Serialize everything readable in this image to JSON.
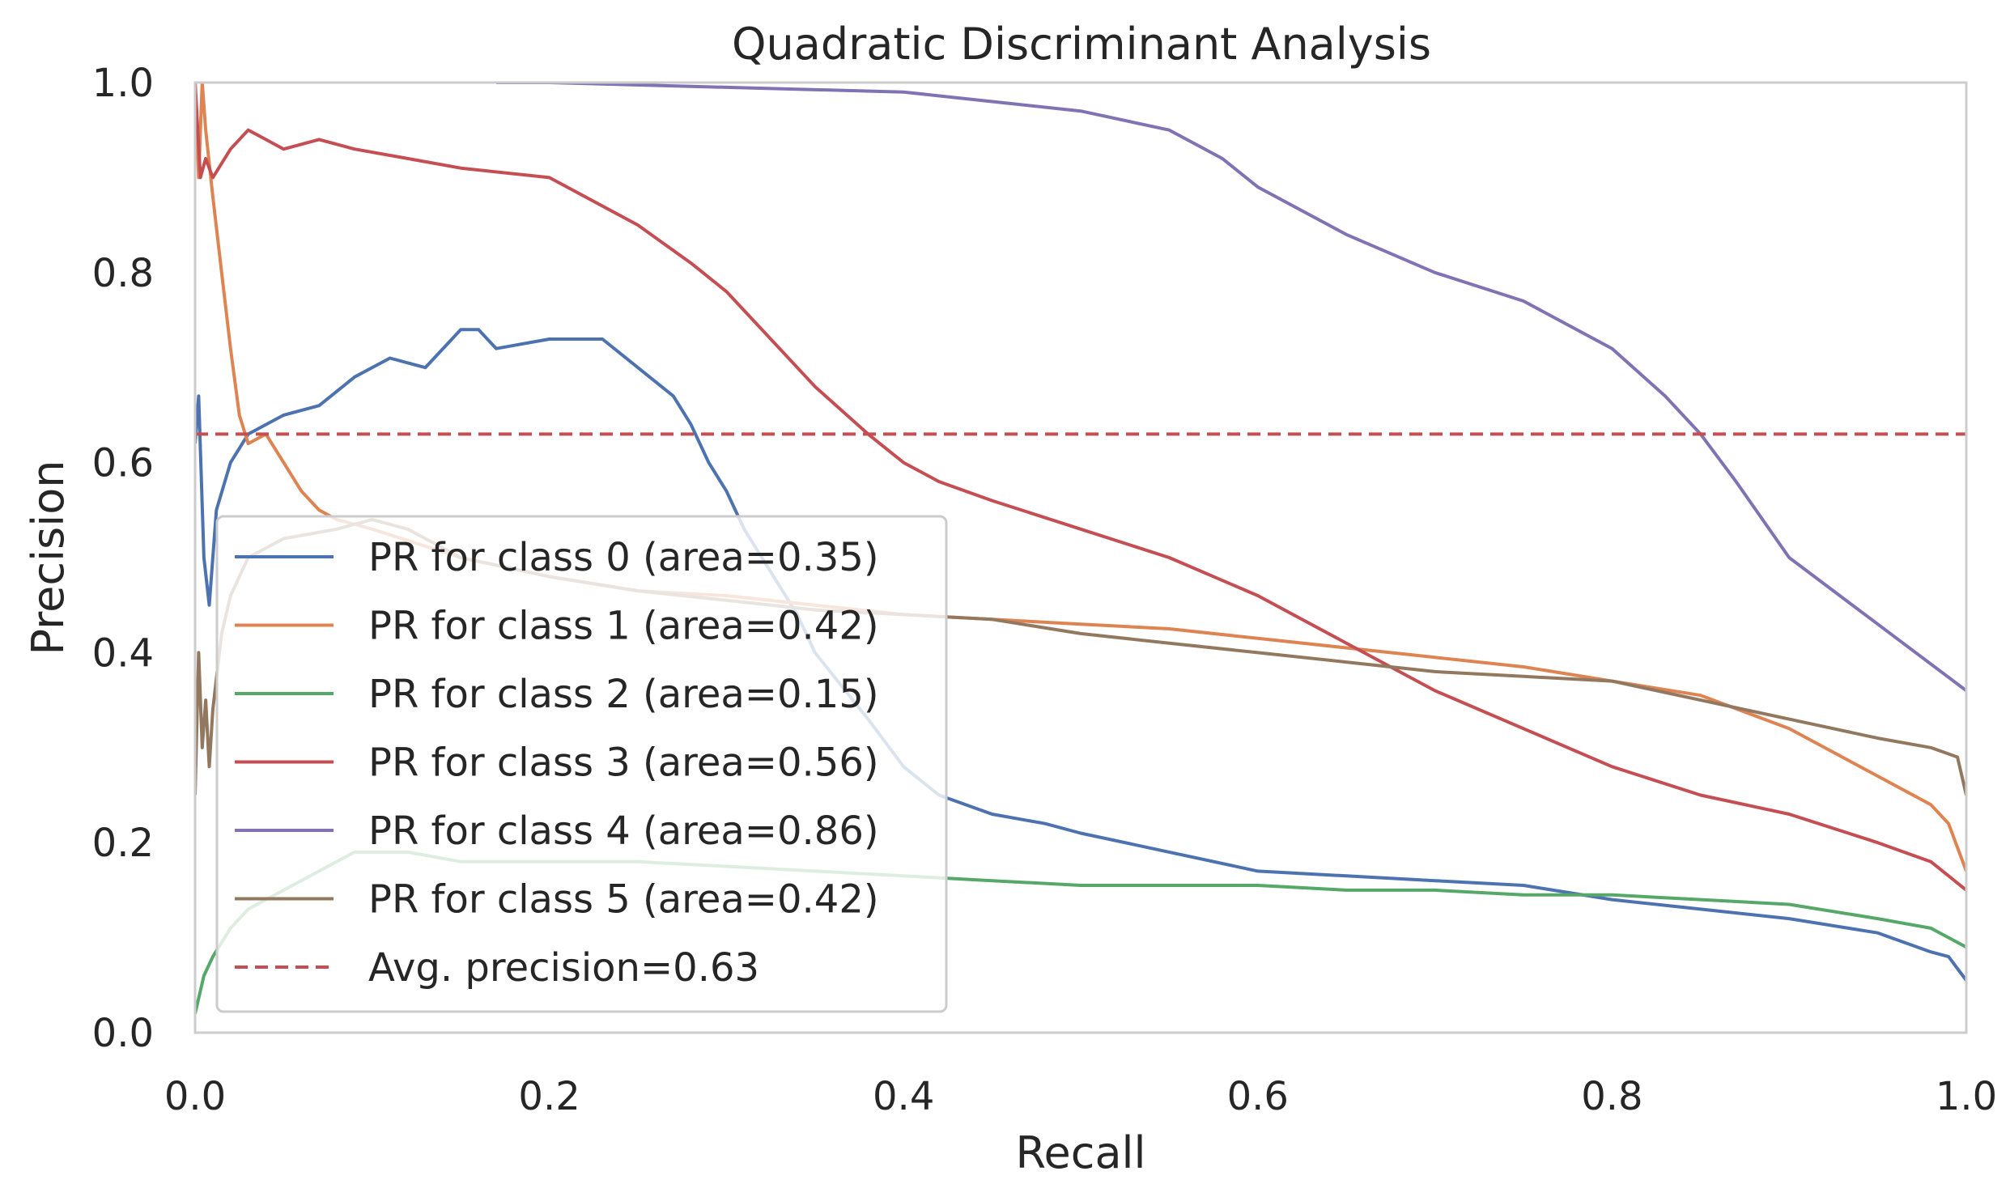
{
  "chart_data": {
    "type": "line",
    "title": "Quadratic Discriminant Analysis",
    "xlabel": "Recall",
    "ylabel": "Precision",
    "xlim": [
      0.0,
      1.0
    ],
    "ylim": [
      0.0,
      1.0
    ],
    "x_ticks": [
      "0.0",
      "0.2",
      "0.4",
      "0.6",
      "0.8",
      "1.0"
    ],
    "y_ticks": [
      "0.0",
      "0.2",
      "0.4",
      "0.6",
      "0.8",
      "1.0"
    ],
    "grid": false,
    "legend_position": "lower-left",
    "series": [
      {
        "name": "PR for class 0 (area=0.35)",
        "color": "#4c72b0",
        "x": [
          0.0,
          0.002,
          0.005,
          0.008,
          0.012,
          0.02,
          0.03,
          0.05,
          0.07,
          0.09,
          0.11,
          0.13,
          0.15,
          0.16,
          0.17,
          0.2,
          0.23,
          0.25,
          0.27,
          0.28,
          0.29,
          0.3,
          0.31,
          0.32,
          0.33,
          0.34,
          0.35,
          0.38,
          0.4,
          0.42,
          0.45,
          0.48,
          0.5,
          0.55,
          0.6,
          0.65,
          0.7,
          0.75,
          0.8,
          0.85,
          0.9,
          0.95,
          0.98,
          0.99,
          1.0
        ],
        "y": [
          0.62,
          0.67,
          0.5,
          0.45,
          0.55,
          0.6,
          0.63,
          0.65,
          0.66,
          0.69,
          0.71,
          0.7,
          0.74,
          0.74,
          0.72,
          0.73,
          0.73,
          0.7,
          0.67,
          0.64,
          0.6,
          0.57,
          0.53,
          0.5,
          0.47,
          0.44,
          0.4,
          0.33,
          0.28,
          0.25,
          0.23,
          0.22,
          0.21,
          0.19,
          0.17,
          0.165,
          0.16,
          0.155,
          0.14,
          0.13,
          0.12,
          0.105,
          0.085,
          0.08,
          0.055
        ]
      },
      {
        "name": "PR for class 1 (area=0.42)",
        "color": "#dd8452",
        "x": [
          0.0,
          0.002,
          0.004,
          0.006,
          0.01,
          0.015,
          0.02,
          0.025,
          0.03,
          0.04,
          0.05,
          0.06,
          0.07,
          0.08,
          0.1,
          0.15,
          0.2,
          0.25,
          0.3,
          0.35,
          0.4,
          0.45,
          0.5,
          0.55,
          0.6,
          0.65,
          0.7,
          0.75,
          0.8,
          0.85,
          0.9,
          0.95,
          0.98,
          0.99,
          1.0
        ],
        "y": [
          1.0,
          0.9,
          1.0,
          0.95,
          0.88,
          0.8,
          0.72,
          0.65,
          0.62,
          0.63,
          0.6,
          0.57,
          0.55,
          0.54,
          0.53,
          0.5,
          0.48,
          0.465,
          0.46,
          0.45,
          0.44,
          0.435,
          0.43,
          0.425,
          0.415,
          0.405,
          0.395,
          0.385,
          0.37,
          0.355,
          0.32,
          0.27,
          0.24,
          0.22,
          0.17
        ]
      },
      {
        "name": "PR for class 2 (area=0.15)",
        "color": "#55a868",
        "x": [
          0.0,
          0.005,
          0.01,
          0.02,
          0.03,
          0.05,
          0.07,
          0.09,
          0.12,
          0.15,
          0.2,
          0.25,
          0.3,
          0.35,
          0.4,
          0.45,
          0.5,
          0.55,
          0.6,
          0.65,
          0.7,
          0.75,
          0.8,
          0.85,
          0.9,
          0.95,
          0.98,
          1.0
        ],
        "y": [
          0.02,
          0.06,
          0.08,
          0.11,
          0.13,
          0.15,
          0.17,
          0.19,
          0.19,
          0.18,
          0.18,
          0.18,
          0.175,
          0.17,
          0.165,
          0.16,
          0.155,
          0.155,
          0.155,
          0.15,
          0.15,
          0.145,
          0.145,
          0.14,
          0.135,
          0.12,
          0.11,
          0.09
        ]
      },
      {
        "name": "PR for class 3 (area=0.56)",
        "color": "#c44e52",
        "x": [
          0.0,
          0.003,
          0.006,
          0.01,
          0.02,
          0.03,
          0.04,
          0.05,
          0.07,
          0.09,
          0.12,
          0.15,
          0.2,
          0.22,
          0.25,
          0.28,
          0.3,
          0.32,
          0.35,
          0.38,
          0.4,
          0.42,
          0.45,
          0.5,
          0.55,
          0.6,
          0.65,
          0.7,
          0.75,
          0.8,
          0.85,
          0.9,
          0.95,
          0.98,
          1.0
        ],
        "y": [
          1.0,
          0.9,
          0.92,
          0.9,
          0.93,
          0.95,
          0.94,
          0.93,
          0.94,
          0.93,
          0.92,
          0.91,
          0.9,
          0.88,
          0.85,
          0.81,
          0.78,
          0.74,
          0.68,
          0.63,
          0.6,
          0.58,
          0.56,
          0.53,
          0.5,
          0.46,
          0.41,
          0.36,
          0.32,
          0.28,
          0.25,
          0.23,
          0.2,
          0.18,
          0.15
        ]
      },
      {
        "name": "PR for class 4 (area=0.86)",
        "color": "#8172b3",
        "x": [
          0.17,
          0.2,
          0.3,
          0.4,
          0.45,
          0.5,
          0.55,
          0.58,
          0.6,
          0.65,
          0.7,
          0.75,
          0.8,
          0.83,
          0.85,
          0.87,
          0.9,
          0.95,
          1.0
        ],
        "y": [
          1.0,
          1.0,
          0.995,
          0.99,
          0.98,
          0.97,
          0.95,
          0.92,
          0.89,
          0.84,
          0.8,
          0.77,
          0.72,
          0.67,
          0.63,
          0.58,
          0.5,
          0.43,
          0.36
        ]
      },
      {
        "name": "PR for class 5 (area=0.42)",
        "color": "#937860",
        "x": [
          0.0,
          0.002,
          0.004,
          0.006,
          0.008,
          0.01,
          0.015,
          0.02,
          0.03,
          0.05,
          0.08,
          0.1,
          0.12,
          0.15,
          0.2,
          0.25,
          0.3,
          0.35,
          0.4,
          0.45,
          0.5,
          0.55,
          0.6,
          0.65,
          0.7,
          0.75,
          0.8,
          0.85,
          0.9,
          0.95,
          0.98,
          0.995,
          1.0
        ],
        "y": [
          0.25,
          0.4,
          0.3,
          0.35,
          0.28,
          0.34,
          0.42,
          0.46,
          0.5,
          0.52,
          0.53,
          0.54,
          0.53,
          0.5,
          0.48,
          0.465,
          0.455,
          0.445,
          0.44,
          0.435,
          0.42,
          0.41,
          0.4,
          0.39,
          0.38,
          0.375,
          0.37,
          0.35,
          0.33,
          0.31,
          0.3,
          0.29,
          0.25
        ]
      }
    ],
    "reference_line": {
      "name": "Avg. precision=0.63",
      "y": 0.63,
      "color": "#c44e52",
      "style": "dashed"
    }
  }
}
